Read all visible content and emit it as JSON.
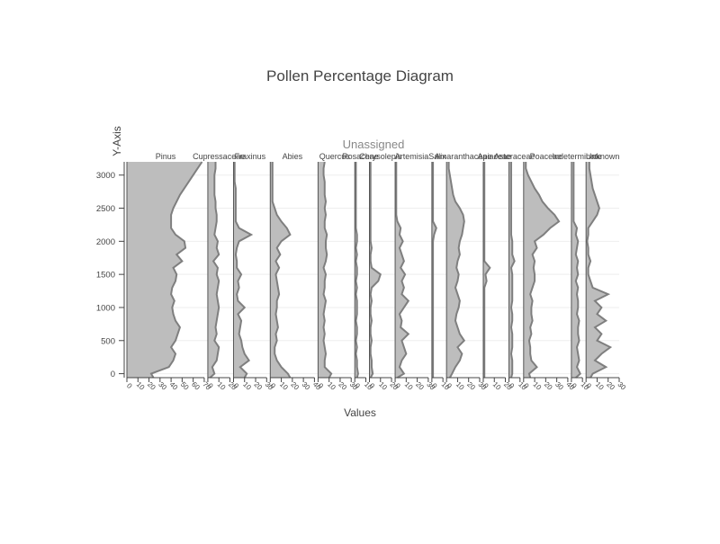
{
  "chart_data": {
    "type": "area",
    "title": "Pollen Percentage Diagram",
    "group_label": "Unassigned",
    "xlabel": "Values",
    "ylabel": "Y-Axis",
    "ylim": [
      -60,
      3200
    ],
    "y_ticks": [
      0,
      500,
      1000,
      1500,
      2000,
      2500,
      3000
    ],
    "depths": [
      -60,
      0,
      100,
      200,
      300,
      400,
      500,
      600,
      700,
      800,
      900,
      1000,
      1100,
      1200,
      1300,
      1400,
      1500,
      1600,
      1700,
      1800,
      1900,
      2000,
      2100,
      2200,
      2300,
      2400,
      2500,
      2600,
      2700,
      2800,
      2900,
      3000,
      3100,
      3200
    ],
    "series": [
      {
        "name": "Pinus",
        "xmax": 70,
        "ticks": [
          0,
          10,
          20,
          30,
          40,
          50,
          60,
          70
        ],
        "values": [
          24,
          22,
          38,
          42,
          44,
          40,
          44,
          46,
          48,
          44,
          42,
          41,
          43,
          40,
          41,
          44,
          45,
          42,
          50,
          45,
          53,
          52,
          44,
          40,
          40,
          40,
          42,
          45,
          48,
          52,
          56,
          60,
          64,
          68
        ]
      },
      {
        "name": "Cupressaceae",
        "xmax": 20,
        "ticks": [
          0,
          10,
          20
        ],
        "values": [
          2,
          6,
          4,
          8,
          9,
          10,
          6,
          8,
          7,
          8,
          9,
          10,
          9,
          8,
          9,
          10,
          8,
          9,
          5,
          10,
          8,
          9,
          6,
          7,
          8,
          8,
          7,
          7,
          6,
          6,
          6,
          6,
          7,
          7
        ]
      },
      {
        "name": "Fraxinus",
        "xmax": 30,
        "ticks": [
          0,
          10,
          20,
          30
        ],
        "values": [
          10,
          12,
          6,
          14,
          10,
          8,
          7,
          5,
          6,
          7,
          4,
          10,
          4,
          3,
          5,
          4,
          7,
          3,
          3,
          2,
          3,
          5,
          16,
          5,
          2,
          2,
          2,
          2,
          2,
          2,
          1,
          1,
          1,
          1
        ]
      },
      {
        "name": "Abies",
        "xmax": 40,
        "ticks": [
          0,
          10,
          20,
          30,
          40
        ],
        "values": [
          18,
          16,
          10,
          6,
          4,
          4,
          6,
          5,
          7,
          6,
          5,
          6,
          6,
          8,
          7,
          6,
          5,
          8,
          5,
          9,
          6,
          10,
          18,
          15,
          10,
          6,
          4,
          2,
          2,
          2,
          2,
          2,
          2,
          2
        ]
      },
      {
        "name": "Quercus",
        "xmax": 30,
        "ticks": [
          0,
          10,
          20,
          30
        ],
        "values": [
          10,
          12,
          6,
          6,
          7,
          6,
          5,
          6,
          5,
          6,
          5,
          6,
          7,
          5,
          6,
          6,
          7,
          5,
          7,
          8,
          7,
          7,
          8,
          6,
          6,
          7,
          6,
          7,
          6,
          6,
          6,
          5,
          5,
          6
        ]
      },
      {
        "name": "Rosaceae",
        "xmax": 10,
        "ticks": [
          0,
          10
        ],
        "values": [
          2,
          3,
          2,
          2,
          1,
          2,
          1,
          2,
          2,
          1,
          2,
          2,
          2,
          1,
          2,
          1,
          2,
          2,
          1,
          2,
          1,
          2,
          2,
          1,
          1,
          1,
          1,
          1,
          1,
          1,
          1,
          1,
          1,
          1
        ]
      },
      {
        "name": "Chrysolepis",
        "xmax": 20,
        "ticks": [
          0,
          10,
          20
        ],
        "values": [
          1,
          3,
          2,
          2,
          1,
          1,
          2,
          1,
          1,
          2,
          1,
          1,
          2,
          1,
          2,
          8,
          10,
          2,
          1,
          1,
          2,
          1,
          1,
          1,
          1,
          1,
          1,
          1,
          1,
          1,
          1,
          1,
          1,
          1
        ]
      },
      {
        "name": "Artemisia",
        "xmax": 30,
        "ticks": [
          0,
          10,
          20,
          30
        ],
        "values": [
          2,
          8,
          4,
          6,
          10,
          8,
          6,
          12,
          5,
          6,
          4,
          8,
          12,
          6,
          8,
          6,
          9,
          5,
          8,
          6,
          4,
          7,
          4,
          5,
          2,
          1,
          1,
          1,
          1,
          1,
          1,
          1,
          1,
          1
        ]
      },
      {
        "name": "Salix",
        "xmax": 10,
        "ticks": [
          0,
          10
        ],
        "values": [
          1,
          1,
          1,
          1,
          1,
          1,
          1,
          1,
          1,
          1,
          1,
          1,
          1,
          1,
          1,
          1,
          1,
          1,
          1,
          1,
          1,
          1,
          2,
          4,
          1,
          1,
          1,
          1,
          1,
          1,
          1,
          1,
          1,
          1
        ]
      },
      {
        "name": "Amaranthaceae",
        "xmax": 30,
        "ticks": [
          0,
          10,
          20,
          30
        ],
        "values": [
          3,
          5,
          8,
          12,
          14,
          10,
          16,
          12,
          10,
          8,
          9,
          11,
          12,
          10,
          8,
          10,
          11,
          9,
          10,
          12,
          11,
          12,
          14,
          15,
          16,
          15,
          12,
          8,
          6,
          5,
          4,
          3,
          2,
          2
        ]
      },
      {
        "name": "Apiaceae",
        "xmax": 20,
        "ticks": [
          0,
          10,
          20
        ],
        "values": [
          1,
          1,
          1,
          1,
          1,
          1,
          1,
          1,
          1,
          1,
          1,
          1,
          1,
          1,
          1,
          3,
          2,
          6,
          1,
          1,
          1,
          1,
          1,
          1,
          1,
          1,
          1,
          1,
          1,
          1,
          1,
          1,
          1,
          1
        ]
      },
      {
        "name": "Asteraceae",
        "xmax": 10,
        "ticks": [
          0,
          10
        ],
        "values": [
          2,
          3,
          3,
          3,
          2,
          3,
          3,
          3,
          2,
          3,
          3,
          2,
          3,
          3,
          3,
          3,
          3,
          2,
          5,
          3,
          3,
          3,
          2,
          2,
          2,
          2,
          2,
          2,
          2,
          2,
          2,
          2,
          2,
          2
        ]
      },
      {
        "name": "Poaceae",
        "xmax": 40,
        "ticks": [
          0,
          10,
          20,
          30,
          40
        ],
        "values": [
          6,
          5,
          12,
          7,
          6,
          6,
          5,
          7,
          6,
          8,
          7,
          7,
          8,
          6,
          8,
          10,
          10,
          9,
          10,
          8,
          12,
          10,
          18,
          24,
          32,
          28,
          22,
          17,
          14,
          10,
          7,
          4,
          2,
          2
        ]
      },
      {
        "name": "Indeterminate",
        "xmax": 10,
        "ticks": [
          0,
          10
        ],
        "values": [
          4,
          8,
          5,
          7,
          6,
          5,
          7,
          6,
          6,
          7,
          5,
          6,
          6,
          5,
          6,
          4,
          6,
          5,
          6,
          4,
          5,
          6,
          4,
          5,
          2,
          2,
          2,
          2,
          2,
          2,
          2,
          2,
          2,
          2
        ]
      },
      {
        "name": "Unknown",
        "xmax": 30,
        "ticks": [
          0,
          10,
          20,
          30
        ],
        "values": [
          4,
          6,
          18,
          8,
          14,
          22,
          10,
          14,
          8,
          18,
          10,
          14,
          8,
          20,
          6,
          4,
          2,
          2,
          4,
          2,
          2,
          1,
          2,
          2,
          6,
          10,
          12,
          10,
          8,
          6,
          5,
          4,
          3,
          3
        ]
      }
    ]
  }
}
